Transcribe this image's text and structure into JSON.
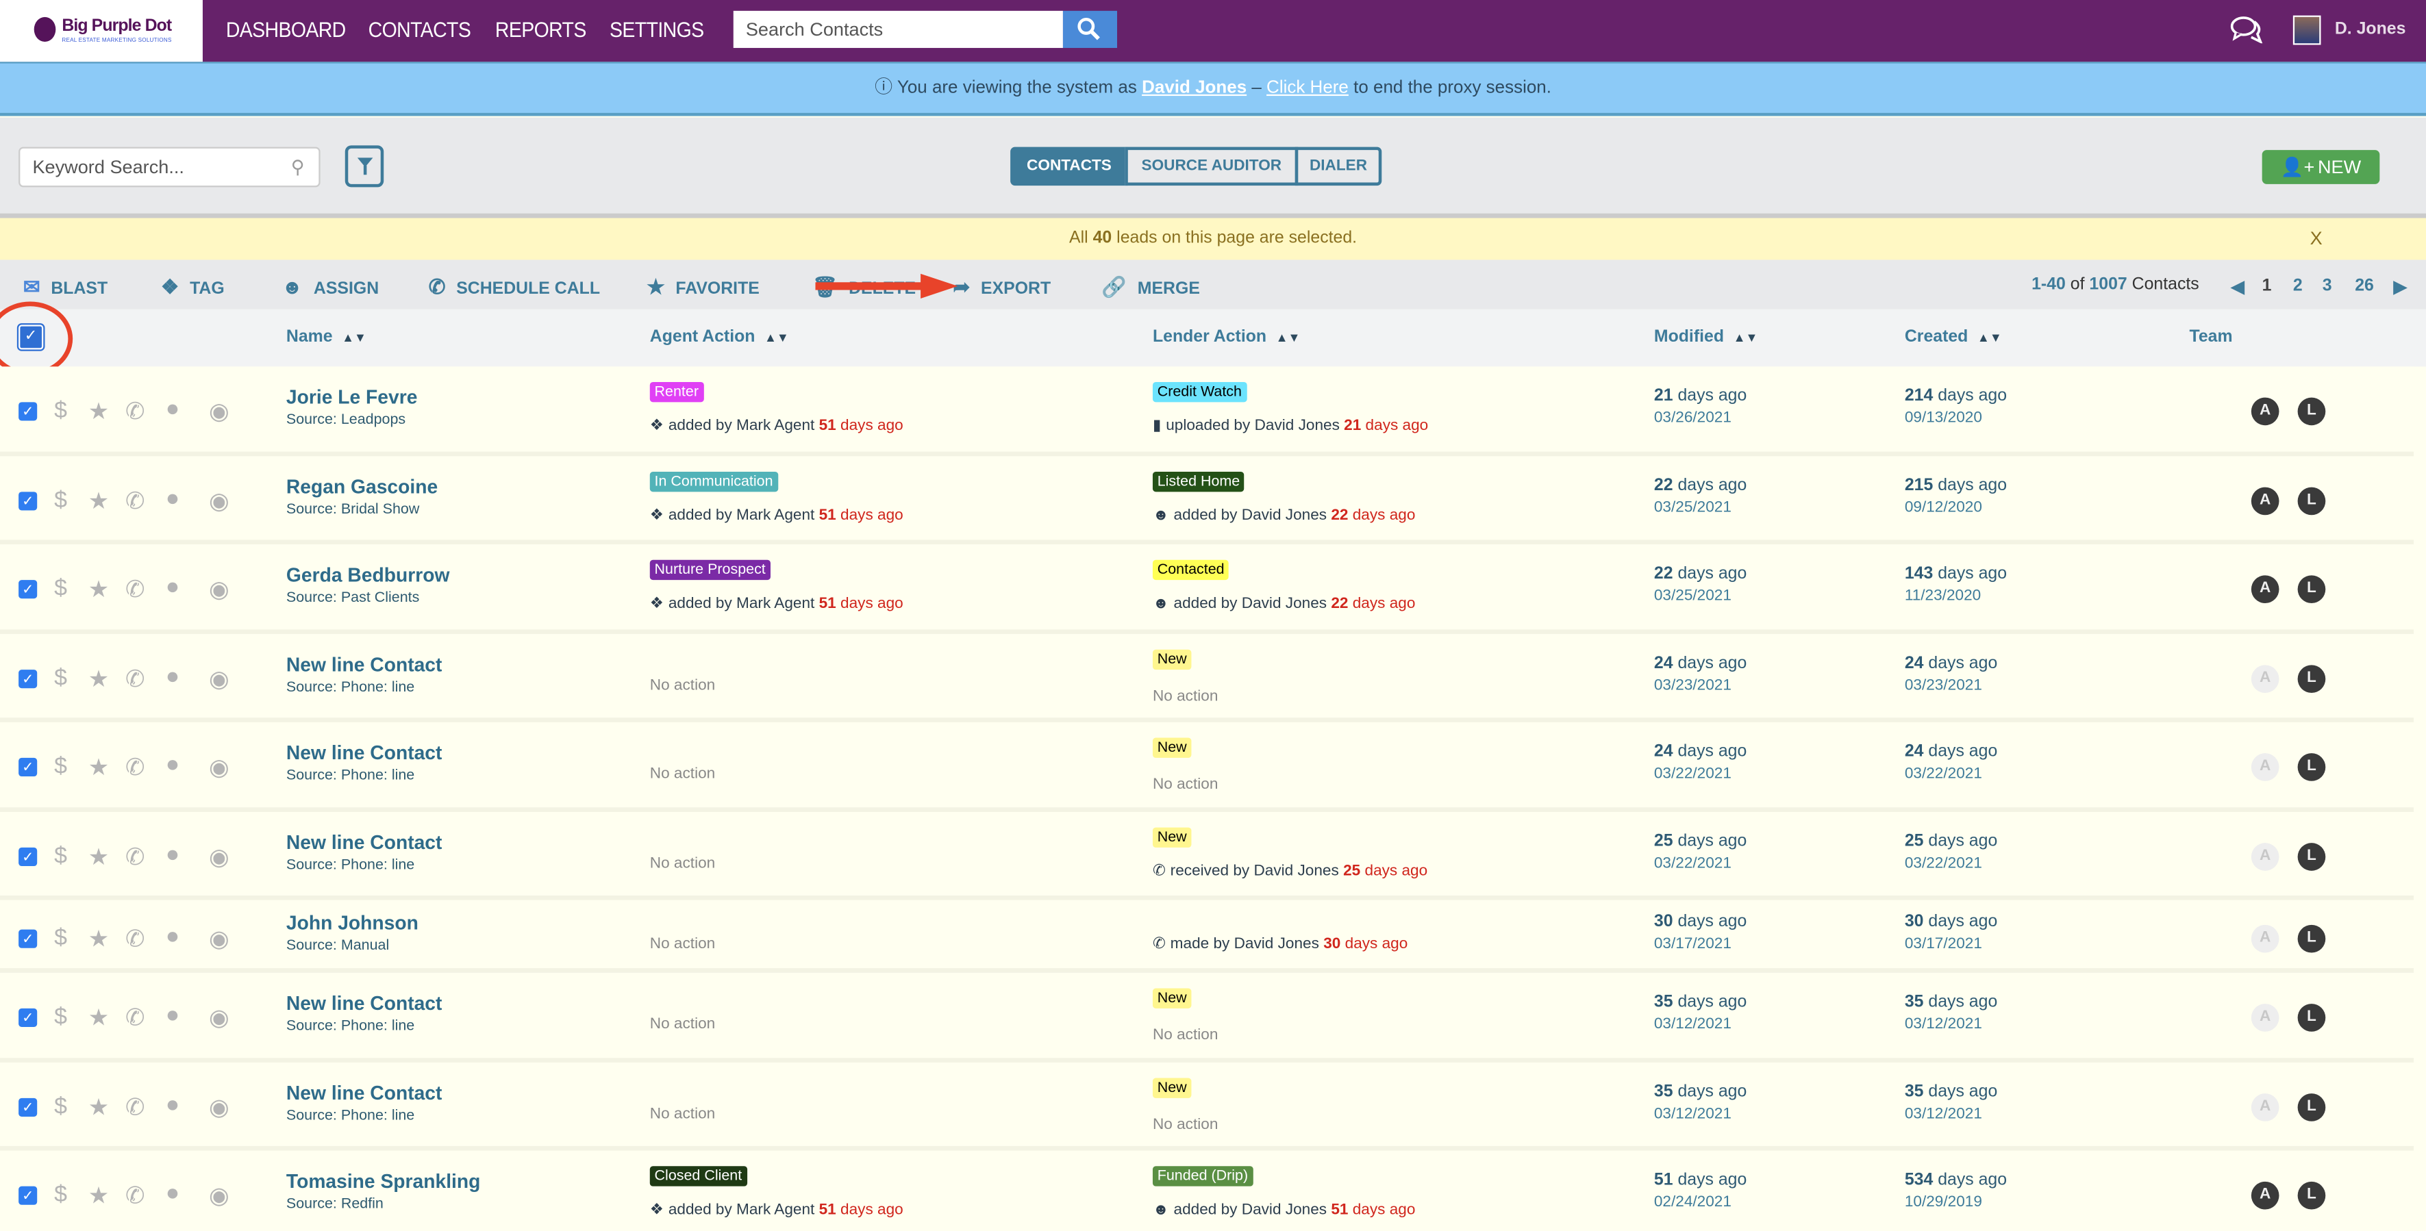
{
  "header": {
    "logo_text": "Big Purple Dot",
    "logo_tagline": "REAL ESTATE MARKETING SOLUTIONS",
    "nav": [
      "DASHBOARD",
      "CONTACTS",
      "REPORTS",
      "SETTINGS"
    ],
    "search_placeholder": "Search Contacts",
    "user_name": "D. Jones"
  },
  "proxy_banner": {
    "prefix": "You are viewing the system as",
    "user": "David Jones",
    "dash": " – ",
    "link": "Click Here",
    "suffix": "to end the proxy session."
  },
  "toolbar": {
    "keyword_placeholder": "Keyword Search...",
    "tabs": [
      "CONTACTS",
      "SOURCE AUDITOR",
      "DIALER"
    ],
    "active_tab": "CONTACTS",
    "new_label": "NEW"
  },
  "selection_bar": {
    "prefix": "All",
    "count": "40",
    "suffix": "leads on this page are selected.",
    "close": "X"
  },
  "actions": [
    "BLAST",
    "TAG",
    "ASSIGN",
    "SCHEDULE CALL",
    "FAVORITE",
    "DELETE",
    "EXPORT",
    "MERGE"
  ],
  "pagination": {
    "range": "1-40",
    "of": "of",
    "total": "1007",
    "unit": "Contacts",
    "pages": [
      "1",
      "2",
      "3",
      "26"
    ],
    "current": "1"
  },
  "columns": [
    "Name",
    "Agent Action",
    "Lender Action",
    "Modified",
    "Created",
    "Team"
  ],
  "colors": {
    "brand": "#66226a",
    "accent": "#3e7b9a",
    "new_button": "#53a453",
    "days_red": "#d0261d"
  },
  "rows": [
    {
      "name": "Jorie Le Fevre",
      "source": "Source: Leadpops",
      "agent": {
        "tag": "Renter",
        "tag_bg": "#e040f5",
        "tag_fg": "#ffffff",
        "icon": "tag-icon",
        "text": "added by Mark Agent",
        "num": "51",
        "unit": "days ago"
      },
      "lender": {
        "tag": "Credit Watch",
        "tag_bg": "#6ce3fd",
        "tag_fg": "#000000",
        "icon": "file-icon",
        "text": "uploaded by David Jones",
        "num": "21",
        "unit": "days ago"
      },
      "modified": {
        "num": "21",
        "unit": "days ago",
        "date": "03/26/2021"
      },
      "created": {
        "num": "214",
        "unit": "days ago",
        "date": "09/13/2020"
      },
      "team_a": true,
      "team_l": true
    },
    {
      "name": "Regan Gascoine",
      "source": "Source: Bridal Show",
      "agent": {
        "tag": "In Communication",
        "tag_bg": "#52b3b8",
        "tag_fg": "#ffffff",
        "icon": "tag-icon",
        "text": "added by Mark Agent",
        "num": "51",
        "unit": "days ago"
      },
      "lender": {
        "tag": "Listed Home",
        "tag_bg": "#245117",
        "tag_fg": "#ffffff",
        "icon": "users-icon",
        "text": "added by David Jones",
        "num": "22",
        "unit": "days ago"
      },
      "modified": {
        "num": "22",
        "unit": "days ago",
        "date": "03/25/2021"
      },
      "created": {
        "num": "215",
        "unit": "days ago",
        "date": "09/12/2020"
      },
      "team_a": true,
      "team_l": true
    },
    {
      "name": "Gerda Bedburrow",
      "source": "Source: Past Clients",
      "agent": {
        "tag": "Nurture Prospect",
        "tag_bg": "#7b2aa6",
        "tag_fg": "#ffffff",
        "icon": "tag-icon",
        "text": "added by Mark Agent",
        "num": "51",
        "unit": "days ago"
      },
      "lender": {
        "tag": "Contacted",
        "tag_bg": "#ffff55",
        "tag_fg": "#000000",
        "icon": "users-icon",
        "text": "added by David Jones",
        "num": "22",
        "unit": "days ago"
      },
      "modified": {
        "num": "22",
        "unit": "days ago",
        "date": "03/25/2021"
      },
      "created": {
        "num": "143",
        "unit": "days ago",
        "date": "11/23/2020"
      },
      "team_a": true,
      "team_l": true
    },
    {
      "name": "New line Contact",
      "source": "Source: Phone: line",
      "agent": {
        "no_action": "No action"
      },
      "lender": {
        "tag": "New",
        "tag_bg": "#fff68f",
        "tag_fg": "#000000",
        "no_action": "No action"
      },
      "modified": {
        "num": "24",
        "unit": "days ago",
        "date": "03/23/2021"
      },
      "created": {
        "num": "24",
        "unit": "days ago",
        "date": "03/23/2021"
      },
      "team_a": false,
      "team_l": true
    },
    {
      "name": "New line Contact",
      "source": "Source: Phone: line",
      "agent": {
        "no_action": "No action"
      },
      "lender": {
        "tag": "New",
        "tag_bg": "#fff68f",
        "tag_fg": "#000000",
        "no_action": "No action"
      },
      "modified": {
        "num": "24",
        "unit": "days ago",
        "date": "03/22/2021"
      },
      "created": {
        "num": "24",
        "unit": "days ago",
        "date": "03/22/2021"
      },
      "team_a": false,
      "team_l": true
    },
    {
      "name": "New line Contact",
      "source": "Source: Phone: line",
      "agent": {
        "no_action": "No action"
      },
      "lender": {
        "tag": "New",
        "tag_bg": "#fff68f",
        "tag_fg": "#000000",
        "icon": "phone-icon",
        "text": "received by David Jones",
        "num": "25",
        "unit": "days ago"
      },
      "modified": {
        "num": "25",
        "unit": "days ago",
        "date": "03/22/2021"
      },
      "created": {
        "num": "25",
        "unit": "days ago",
        "date": "03/22/2021"
      },
      "team_a": false,
      "team_l": true
    },
    {
      "name": "John Johnson",
      "source": "Source: Manual",
      "short": true,
      "agent": {
        "no_action": "No action"
      },
      "lender": {
        "icon": "phone-icon",
        "text": "made by David Jones",
        "num": "30",
        "unit": "days ago"
      },
      "modified": {
        "num": "30",
        "unit": "days ago",
        "date": "03/17/2021"
      },
      "created": {
        "num": "30",
        "unit": "days ago",
        "date": "03/17/2021"
      },
      "team_a": false,
      "team_l": true
    },
    {
      "name": "New line Contact",
      "source": "Source: Phone: line",
      "agent": {
        "no_action": "No action"
      },
      "lender": {
        "tag": "New",
        "tag_bg": "#fff68f",
        "tag_fg": "#000000",
        "no_action": "No action"
      },
      "modified": {
        "num": "35",
        "unit": "days ago",
        "date": "03/12/2021"
      },
      "created": {
        "num": "35",
        "unit": "days ago",
        "date": "03/12/2021"
      },
      "team_a": false,
      "team_l": true
    },
    {
      "name": "New line Contact",
      "source": "Source: Phone: line",
      "agent": {
        "no_action": "No action"
      },
      "lender": {
        "tag": "New",
        "tag_bg": "#fff68f",
        "tag_fg": "#000000",
        "no_action": "No action"
      },
      "modified": {
        "num": "35",
        "unit": "days ago",
        "date": "03/12/2021"
      },
      "created": {
        "num": "35",
        "unit": "days ago",
        "date": "03/12/2021"
      },
      "team_a": false,
      "team_l": true
    },
    {
      "name": "Tomasine Sprankling",
      "source": "Source: Redfin",
      "agent": {
        "tag": "Closed Client",
        "tag_bg": "#1f3a14",
        "tag_fg": "#ffffff",
        "icon": "tag-icon",
        "text": "added by Mark Agent",
        "num": "51",
        "unit": "days ago"
      },
      "lender": {
        "tag": "Funded (Drip)",
        "tag_bg": "#5a8f43",
        "tag_fg": "#ffffff",
        "icon": "users-icon",
        "text": "added by David Jones",
        "num": "51",
        "unit": "days ago"
      },
      "modified": {
        "num": "51",
        "unit": "days ago",
        "date": "02/24/2021"
      },
      "created": {
        "num": "534",
        "unit": "days ago",
        "date": "10/29/2019"
      },
      "team_a": true,
      "team_l": true
    }
  ],
  "team_letters": {
    "a": "A",
    "l": "L"
  }
}
